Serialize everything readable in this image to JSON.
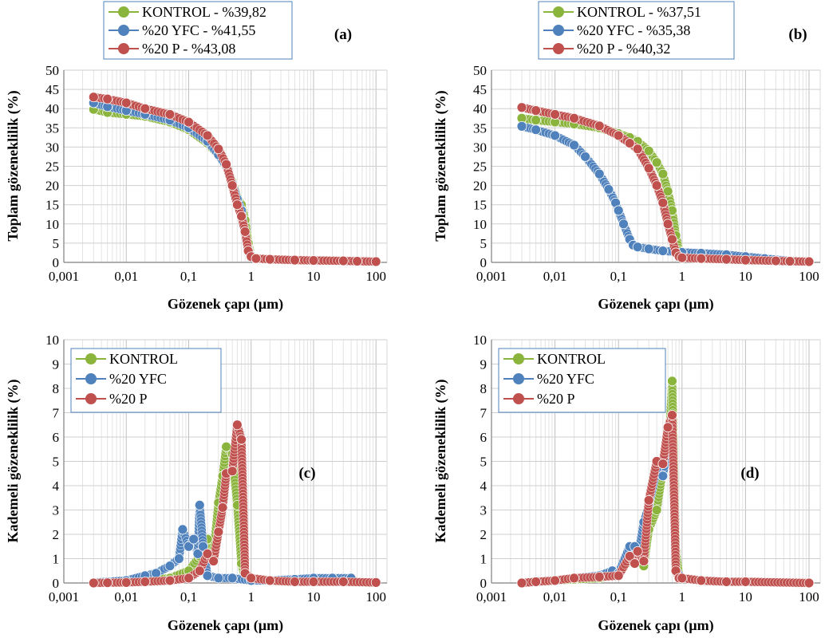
{
  "chart_data": [
    {
      "type": "scatter",
      "panel_label": "(a)",
      "xlabel": "Gözenek çapı (µm)",
      "ylabel": "Toplam gözeneklilik (%)",
      "xscale": "log",
      "xlim": [
        0.001,
        150
      ],
      "ylim": [
        0,
        50
      ],
      "xticks": [
        "0,001",
        "0,01",
        "0,1",
        "1",
        "10",
        "100"
      ],
      "yticks": [
        "0",
        "5",
        "10",
        "15",
        "20",
        "25",
        "30",
        "35",
        "40",
        "45",
        "50"
      ],
      "grid": true,
      "legend_position": "top",
      "series": [
        {
          "name": "KONTROL - %39,82",
          "color": "#8ab43c",
          "x": [
            0.003,
            0.005,
            0.01,
            0.02,
            0.05,
            0.1,
            0.2,
            0.3,
            0.4,
            0.5,
            0.6,
            0.7,
            0.8,
            0.9,
            1,
            1.2,
            2,
            5,
            10,
            30,
            50,
            100
          ],
          "y": [
            39.8,
            39,
            38.5,
            38,
            36.5,
            34.5,
            31,
            28,
            25,
            21,
            17,
            15,
            11,
            5,
            2,
            1,
            0.8,
            0.6,
            0.5,
            0.4,
            0.3,
            0.2
          ]
        },
        {
          "name": "%20 YFC - %41,55",
          "color": "#4f81bd",
          "x": [
            0.003,
            0.005,
            0.01,
            0.02,
            0.05,
            0.1,
            0.2,
            0.3,
            0.4,
            0.5,
            0.6,
            0.7,
            0.8,
            0.9,
            1,
            1.2,
            2,
            5,
            10,
            30,
            50,
            100
          ],
          "y": [
            41.5,
            40.5,
            39.5,
            38.5,
            37,
            35,
            31.5,
            28,
            25,
            20.5,
            16.5,
            13.5,
            7.5,
            3.5,
            1.8,
            1,
            0.8,
            0.6,
            0.5,
            0.4,
            0.3,
            0.2
          ]
        },
        {
          "name": "%20 P - %43,08",
          "color": "#c0504d",
          "x": [
            0.003,
            0.005,
            0.01,
            0.02,
            0.05,
            0.1,
            0.2,
            0.3,
            0.4,
            0.5,
            0.6,
            0.7,
            0.8,
            0.9,
            1,
            1.2,
            2,
            5,
            10,
            30,
            50,
            100
          ],
          "y": [
            43,
            42.5,
            41.5,
            40,
            38.5,
            36.5,
            33,
            29.5,
            25.5,
            20,
            15,
            12,
            8,
            3,
            1.5,
            1,
            0.8,
            0.6,
            0.5,
            0.4,
            0.3,
            0.2
          ]
        }
      ]
    },
    {
      "type": "scatter",
      "panel_label": "(b)",
      "xlabel": "Gözenek çapı (µm)",
      "ylabel": "Toplam gözeneklilik (%)",
      "xscale": "log",
      "xlim": [
        0.001,
        150
      ],
      "ylim": [
        0,
        50
      ],
      "xticks": [
        "0,001",
        "0,01",
        "0,1",
        "1",
        "10",
        "100"
      ],
      "yticks": [
        "0",
        "5",
        "10",
        "15",
        "20",
        "25",
        "30",
        "35",
        "40",
        "45",
        "50"
      ],
      "grid": true,
      "legend_position": "top",
      "series": [
        {
          "name": "KONTROL - %37,51",
          "color": "#8ab43c",
          "x": [
            0.003,
            0.005,
            0.01,
            0.02,
            0.05,
            0.1,
            0.15,
            0.2,
            0.3,
            0.4,
            0.5,
            0.6,
            0.7,
            0.8,
            0.9,
            1,
            2,
            5,
            10,
            30,
            50,
            100
          ],
          "y": [
            37.5,
            37,
            36.5,
            36,
            35,
            33.5,
            32.5,
            31.5,
            29,
            26,
            23,
            18.5,
            13.5,
            7,
            3,
            2,
            1.5,
            1.2,
            1,
            0.6,
            0.4,
            0.2
          ]
        },
        {
          "name": "%20 YFC - %35,38",
          "color": "#4f81bd",
          "x": [
            0.003,
            0.005,
            0.01,
            0.02,
            0.03,
            0.05,
            0.07,
            0.09,
            0.1,
            0.12,
            0.15,
            0.17,
            0.2,
            0.3,
            0.5,
            1,
            2,
            5,
            10,
            20,
            50,
            100
          ],
          "y": [
            35.4,
            34.5,
            33,
            30.5,
            27.5,
            23,
            19,
            15.5,
            13.5,
            10,
            6,
            4.5,
            4,
            3.5,
            3,
            2.6,
            2.4,
            2,
            1.5,
            1,
            0.4,
            0.2
          ]
        },
        {
          "name": "%20 P - %40,32",
          "color": "#c0504d",
          "x": [
            0.003,
            0.005,
            0.01,
            0.02,
            0.05,
            0.1,
            0.15,
            0.2,
            0.3,
            0.4,
            0.5,
            0.6,
            0.7,
            0.8,
            0.9,
            1,
            2,
            5,
            10,
            30,
            50,
            100
          ],
          "y": [
            40.3,
            39.5,
            38.5,
            37.5,
            35.5,
            33,
            31,
            29.5,
            24.5,
            20,
            15.5,
            10,
            6,
            2.5,
            1.5,
            1.2,
            1,
            0.8,
            0.6,
            0.4,
            0.3,
            0.2
          ]
        }
      ]
    },
    {
      "type": "line",
      "panel_label": "(c)",
      "xlabel": "Gözenek çapı (µm)",
      "ylabel": "Kademeli gözeneklilik (%)",
      "xscale": "log",
      "xlim": [
        0.001,
        150
      ],
      "ylim": [
        0,
        10
      ],
      "xticks": [
        "0,001",
        "0,01",
        "0,1",
        "1",
        "10",
        "100"
      ],
      "yticks": [
        "0",
        "1",
        "2",
        "3",
        "4",
        "5",
        "6",
        "7",
        "8",
        "9",
        "10"
      ],
      "grid": true,
      "legend_position": "top-left",
      "series": [
        {
          "name": "KONTROL",
          "color": "#8ab43c",
          "x": [
            0.003,
            0.005,
            0.01,
            0.02,
            0.05,
            0.1,
            0.15,
            0.2,
            0.25,
            0.3,
            0.35,
            0.4,
            0.5,
            0.6,
            0.7,
            0.8,
            1,
            2,
            5,
            10,
            30,
            100
          ],
          "y": [
            0,
            0.02,
            0.05,
            0.1,
            0.2,
            0.5,
            1.1,
            1.8,
            1.2,
            3.3,
            4.4,
            5.6,
            5.3,
            3.2,
            0.8,
            0.2,
            0.1,
            0.1,
            0.05,
            0.05,
            0.05,
            0
          ]
        },
        {
          "name": "%20 YFC",
          "color": "#4f81bd",
          "x": [
            0.003,
            0.005,
            0.01,
            0.02,
            0.03,
            0.05,
            0.07,
            0.08,
            0.1,
            0.12,
            0.14,
            0.15,
            0.17,
            0.2,
            0.3,
            0.5,
            1,
            2,
            5,
            10,
            20,
            40
          ],
          "y": [
            0.02,
            0.05,
            0.1,
            0.3,
            0.4,
            0.7,
            1,
            2.2,
            1.5,
            1.8,
            1.2,
            3.2,
            1.5,
            0.3,
            0.2,
            0.2,
            0.1,
            0.1,
            0.15,
            0.2,
            0.2,
            0.2
          ]
        },
        {
          "name": "%20 P",
          "color": "#c0504d",
          "x": [
            0.003,
            0.005,
            0.01,
            0.02,
            0.05,
            0.1,
            0.15,
            0.2,
            0.25,
            0.3,
            0.35,
            0.4,
            0.5,
            0.6,
            0.7,
            0.8,
            1,
            2,
            5,
            10,
            30,
            100
          ],
          "y": [
            0,
            0.01,
            0.02,
            0.05,
            0.1,
            0.2,
            0.5,
            1.2,
            0.9,
            2.1,
            3.1,
            4.5,
            4.6,
            6.5,
            5.9,
            0.4,
            0.2,
            0.1,
            0.05,
            0.05,
            0.05,
            0.02
          ]
        }
      ]
    },
    {
      "type": "line",
      "panel_label": "(d)",
      "xlabel": "Gözenek çapı (µm)",
      "ylabel": "Kademeli gözeneklilik (%)",
      "xscale": "log",
      "xlim": [
        0.001,
        150
      ],
      "ylim": [
        0,
        10
      ],
      "xticks": [
        "0,001",
        "0,01",
        "0,1",
        "1",
        "10",
        "100"
      ],
      "yticks": [
        "0",
        "1",
        "2",
        "3",
        "4",
        "5",
        "6",
        "7",
        "8",
        "9",
        "10"
      ],
      "grid": true,
      "legend_position": "top-left",
      "series": [
        {
          "name": "KONTROL",
          "color": "#8ab43c",
          "x": [
            0.003,
            0.005,
            0.01,
            0.02,
            0.05,
            0.1,
            0.15,
            0.18,
            0.2,
            0.25,
            0.3,
            0.4,
            0.5,
            0.6,
            0.7,
            0.8,
            0.9,
            1,
            2,
            5,
            10,
            100
          ],
          "y": [
            0,
            0.05,
            0.1,
            0.15,
            0.2,
            0.35,
            1,
            1.5,
            1.2,
            0.7,
            2.2,
            3,
            4.7,
            5,
            8.3,
            1.3,
            0.3,
            0.2,
            0.1,
            0.05,
            0.05,
            0
          ]
        },
        {
          "name": "%20 YFC",
          "color": "#4f81bd",
          "x": [
            0.003,
            0.005,
            0.01,
            0.02,
            0.05,
            0.08,
            0.1,
            0.15,
            0.18,
            0.2,
            0.25,
            0.3,
            0.4,
            0.5,
            0.6,
            0.7,
            0.8,
            1,
            2,
            5,
            10,
            100
          ],
          "y": [
            0.02,
            0.05,
            0.1,
            0.2,
            0.3,
            0.5,
            0.4,
            1.5,
            1.5,
            1,
            2.5,
            3.2,
            4.7,
            4.4,
            5.7,
            6.2,
            0.5,
            0.2,
            0.1,
            0.05,
            0.05,
            0
          ]
        },
        {
          "name": "%20 P",
          "color": "#c0504d",
          "x": [
            0.003,
            0.005,
            0.01,
            0.02,
            0.05,
            0.1,
            0.15,
            0.18,
            0.2,
            0.25,
            0.3,
            0.4,
            0.5,
            0.6,
            0.7,
            0.8,
            0.9,
            1,
            2,
            5,
            10,
            100
          ],
          "y": [
            0,
            0.05,
            0.1,
            0.2,
            0.25,
            0.3,
            1.1,
            0.8,
            1.3,
            0.9,
            3.4,
            5,
            4.9,
            6.4,
            6.9,
            0.5,
            0.2,
            0.2,
            0.1,
            0.05,
            0.05,
            0
          ]
        }
      ]
    }
  ]
}
